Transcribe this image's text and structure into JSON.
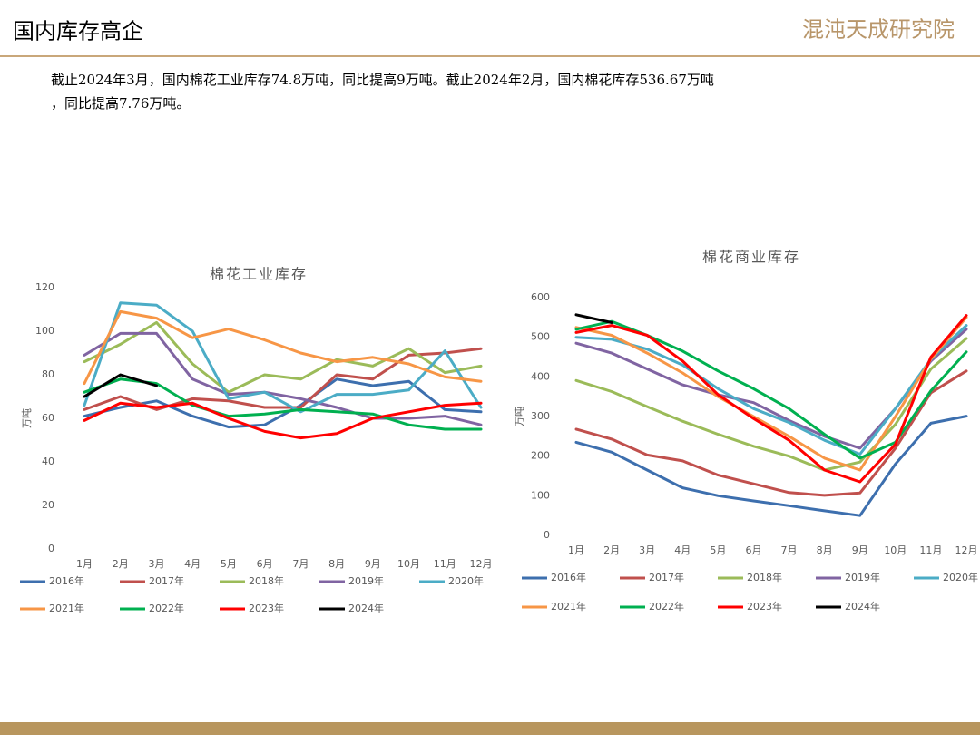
{
  "header": {
    "title": "国内库存高企",
    "logo": "混沌天成研究院"
  },
  "text": {
    "lines": [
      "截止2024年3月，国内棉花工业库存74.8万吨，同比提高9万吨。截止2024年2月，国内棉花库存536.67万吨",
      "，同比提高7.76万吨。"
    ]
  },
  "chart_data": [
    {
      "type": "line",
      "title": "棉花工业库存",
      "y_label": "万吨",
      "categories": [
        "1月",
        "2月",
        "3月",
        "4月",
        "5月",
        "6月",
        "7月",
        "8月",
        "9月",
        "10月",
        "11月",
        "12月"
      ],
      "ylim": [
        0,
        120
      ],
      "yticks": [
        0,
        20,
        40,
        60,
        80,
        100,
        120
      ],
      "grid": false,
      "series": [
        {
          "name": "2016年",
          "color": "#3d6fae",
          "values": [
            61,
            65,
            68,
            61,
            56,
            57,
            66,
            78,
            75,
            77,
            64,
            63
          ]
        },
        {
          "name": "2017年",
          "color": "#c0504d",
          "values": [
            64,
            70,
            64,
            69,
            68,
            65,
            65,
            80,
            78,
            89,
            90,
            92
          ]
        },
        {
          "name": "2018年",
          "color": "#9bbb59",
          "values": [
            86,
            94,
            104,
            85,
            72,
            80,
            78,
            87,
            84,
            92,
            81,
            84
          ]
        },
        {
          "name": "2019年",
          "color": "#8064a2",
          "values": [
            89,
            99,
            99,
            78,
            71,
            72,
            69,
            65,
            60,
            60,
            61,
            57
          ]
        },
        {
          "name": "2020年",
          "color": "#4bacc6",
          "values": [
            66,
            113,
            112,
            100,
            69,
            72,
            63,
            71,
            71,
            73,
            91,
            65
          ]
        },
        {
          "name": "2021年",
          "color": "#f79646",
          "values": [
            76,
            109,
            106,
            97,
            101,
            96,
            90,
            86,
            88,
            85,
            79,
            77
          ]
        },
        {
          "name": "2022年",
          "color": "#00b050",
          "values": [
            72,
            78,
            76,
            66,
            61,
            62,
            64,
            63,
            62,
            57,
            55,
            55
          ]
        },
        {
          "name": "2023年",
          "color": "#ff0000",
          "values": [
            59,
            67,
            65,
            67,
            60,
            54,
            51,
            53,
            60,
            63,
            66,
            67
          ]
        },
        {
          "name": "2024年",
          "color": "#000000",
          "values": [
            70,
            80,
            75,
            null,
            null,
            null,
            null,
            null,
            null,
            null,
            null,
            null
          ]
        }
      ]
    },
    {
      "type": "line",
      "title": "棉花商业库存",
      "y_label": "万吨",
      "categories": [
        "1月",
        "2月",
        "3月",
        "4月",
        "5月",
        "6月",
        "7月",
        "8月",
        "9月",
        "10月",
        "11月",
        "12月"
      ],
      "ylim": [
        0,
        600
      ],
      "yticks": [
        0,
        100,
        200,
        300,
        400,
        500,
        600
      ],
      "grid": false,
      "series": [
        {
          "name": "2016年",
          "color": "#3d6fae",
          "values": [
            235,
            210,
            165,
            120,
            100,
            87,
            75,
            62,
            50,
            180,
            283,
            301
          ]
        },
        {
          "name": "2017年",
          "color": "#c0504d",
          "values": [
            268,
            243,
            203,
            188,
            152,
            130,
            108,
            101,
            107,
            220,
            360,
            415
          ]
        },
        {
          "name": "2018年",
          "color": "#9bbb59",
          "values": [
            391,
            363,
            325,
            288,
            255,
            225,
            200,
            165,
            185,
            280,
            420,
            497
          ]
        },
        {
          "name": "2019年",
          "color": "#8064a2",
          "values": [
            485,
            460,
            420,
            380,
            355,
            335,
            290,
            250,
            220,
            320,
            440,
            520
          ]
        },
        {
          "name": "2020年",
          "color": "#4bacc6",
          "values": [
            500,
            495,
            470,
            430,
            370,
            320,
            285,
            240,
            205,
            320,
            445,
            530
          ]
        },
        {
          "name": "2021年",
          "color": "#f79646",
          "values": [
            525,
            505,
            460,
            410,
            350,
            300,
            250,
            195,
            165,
            300,
            445,
            550
          ]
        },
        {
          "name": "2022年",
          "color": "#00b050",
          "values": [
            520,
            540,
            505,
            465,
            415,
            370,
            320,
            255,
            195,
            235,
            365,
            463
          ]
        },
        {
          "name": "2023年",
          "color": "#ff0000",
          "values": [
            512,
            530,
            505,
            440,
            355,
            295,
            240,
            165,
            135,
            230,
            450,
            555
          ]
        },
        {
          "name": "2024年",
          "color": "#000000",
          "values": [
            557,
            537,
            null,
            null,
            null,
            null,
            null,
            null,
            null,
            null,
            null,
            null
          ]
        }
      ]
    }
  ]
}
